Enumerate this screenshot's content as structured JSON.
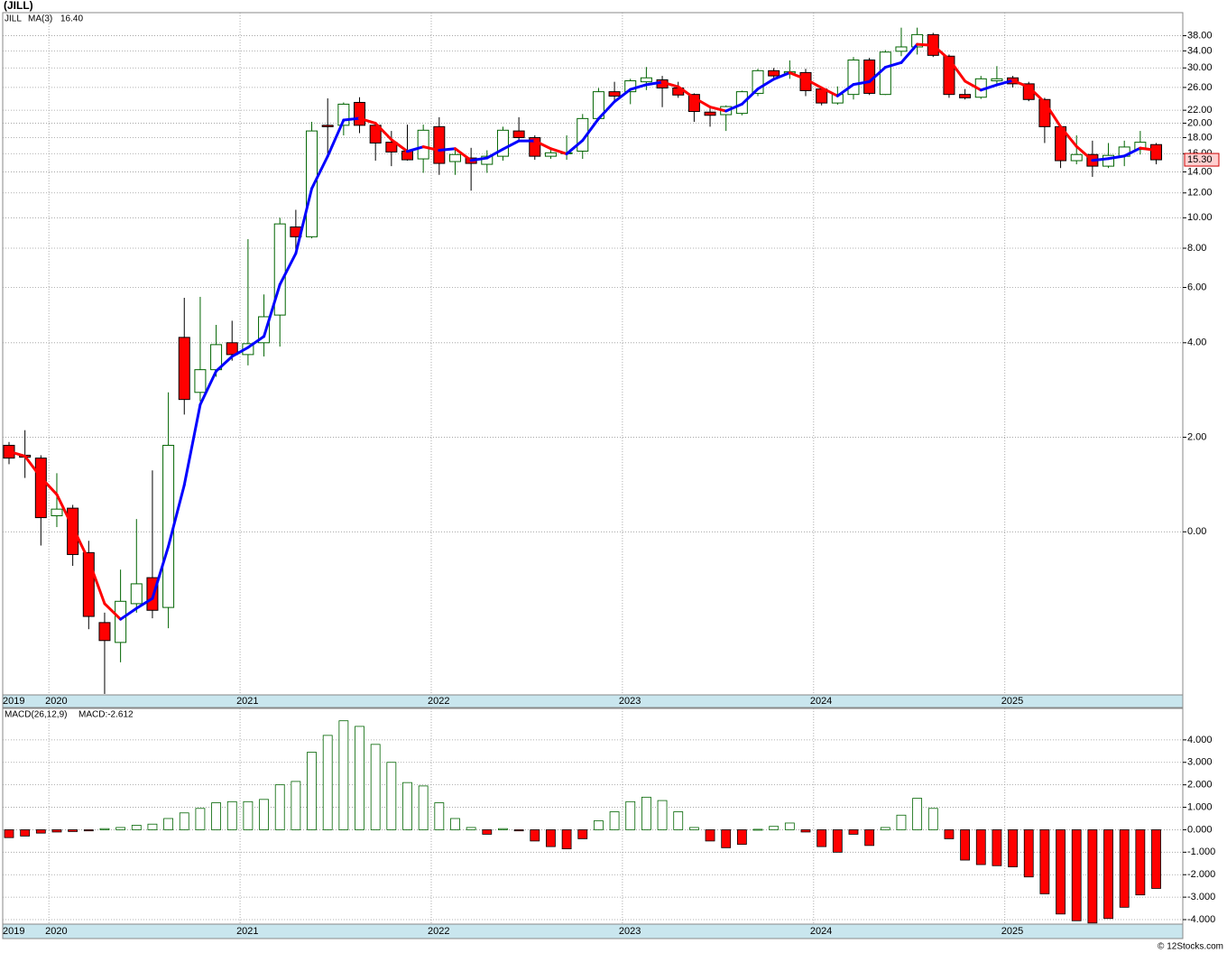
{
  "chart_data": [
    {
      "type": "candlestick",
      "title": "(JILL)",
      "symbol": "JILL",
      "categories": [
        "2019",
        null,
        null,
        "2020",
        null,
        null,
        null,
        null,
        null,
        null,
        null,
        null,
        null,
        null,
        null,
        "2021",
        null,
        null,
        null,
        null,
        null,
        null,
        null,
        null,
        null,
        null,
        null,
        "2022",
        null,
        null,
        null,
        null,
        null,
        null,
        null,
        null,
        null,
        null,
        null,
        "2023",
        null,
        null,
        null,
        null,
        null,
        null,
        null,
        null,
        null,
        null,
        null,
        "2024",
        null,
        null,
        null,
        null,
        null,
        null,
        null,
        null,
        null,
        null,
        null,
        "2025",
        null,
        null,
        null,
        null,
        null,
        null,
        null,
        null,
        null
      ],
      "open": [
        1.83,
        1.62,
        1.56,
        0.34,
        0.5,
        -0.44,
        -1.92,
        -2.34,
        -1.52,
        -0.97,
        -1.6,
        4.16,
        2.95,
        3.43,
        4.0,
        3.75,
        4.0,
        4.9,
        9.35,
        8.7,
        19.7,
        19.7,
        23.3,
        19.7,
        17.4,
        16.3,
        15.4,
        19.5,
        15.1,
        15.5,
        14.8,
        15.7,
        18.9,
        18.0,
        15.7,
        16.0,
        16.3,
        20.7,
        25.2,
        25.2,
        27.1,
        27.5,
        25.9,
        24.7,
        21.7,
        21.3,
        21.5,
        24.9,
        29.4,
        28.9,
        29.0,
        25.7,
        23.2,
        24.7,
        31.8,
        24.7,
        33.9,
        35.0,
        38.3,
        32.7,
        24.7,
        24.2,
        27.3,
        27.9,
        26.7,
        23.8,
        19.5,
        15.2,
        15.9,
        14.6,
        15.7,
        16.5,
        17.1
      ],
      "high": [
        1.9,
        2.15,
        1.62,
        1.24,
        0.57,
        -0.19,
        -1.71,
        -0.8,
        0.27,
        1.3,
        2.95,
        5.56,
        5.6,
        4.56,
        4.7,
        8.55,
        5.7,
        10.0,
        10.6,
        20.2,
        24.0,
        23.3,
        24.2,
        19.8,
        18.9,
        19.8,
        19.8,
        20.9,
        16.7,
        16.7,
        16.4,
        19.5,
        20.9,
        18.3,
        16.6,
        18.3,
        21.4,
        25.9,
        27.1,
        27.7,
        30.2,
        28.3,
        27.1,
        24.9,
        22.3,
        22.8,
        25.4,
        29.8,
        30.0,
        31.7,
        29.8,
        26.0,
        26.2,
        32.5,
        32.3,
        34.2,
        40.3,
        40.3,
        38.8,
        33.1,
        25.7,
        28.3,
        30.4,
        28.3,
        27.1,
        24.1,
        19.8,
        18.3,
        17.6,
        17.3,
        17.6,
        18.9,
        17.3
      ],
      "low": [
        1.43,
        1.14,
        -0.29,
        0.1,
        -0.72,
        -2.06,
        -3.43,
        -2.76,
        -1.71,
        -1.83,
        -2.04,
        2.48,
        2.76,
        3.28,
        3.62,
        3.52,
        3.71,
        3.92,
        7.9,
        8.6,
        15.9,
        18.3,
        18.6,
        15.2,
        14.6,
        15.2,
        13.9,
        13.7,
        13.7,
        12.2,
        13.9,
        15.2,
        17.7,
        15.3,
        15.4,
        15.3,
        15.4,
        20.4,
        23.5,
        23.0,
        25.5,
        22.5,
        24.1,
        20.2,
        19.5,
        18.9,
        21.2,
        24.4,
        27.7,
        27.7,
        24.4,
        22.8,
        22.9,
        23.8,
        24.6,
        24.6,
        32.7,
        33.1,
        32.5,
        24.1,
        23.8,
        23.9,
        26.7,
        26.0,
        23.5,
        17.3,
        14.4,
        14.8,
        13.5,
        14.4,
        14.6,
        15.9,
        14.8
      ],
      "close": [
        1.56,
        1.58,
        0.3,
        0.48,
        -0.48,
        -1.79,
        -2.3,
        -1.47,
        -1.1,
        -1.66,
        1.83,
        2.8,
        3.43,
        3.96,
        3.75,
        3.98,
        4.84,
        9.56,
        8.7,
        18.9,
        19.5,
        23.0,
        19.7,
        17.3,
        16.2,
        15.3,
        19.0,
        14.9,
        15.9,
        14.9,
        15.7,
        19.0,
        18.0,
        15.7,
        16.1,
        16.1,
        20.7,
        25.2,
        24.4,
        27.3,
        27.9,
        25.9,
        24.6,
        21.8,
        21.2,
        22.6,
        25.2,
        29.4,
        28.3,
        29.2,
        25.4,
        23.2,
        24.7,
        31.8,
        24.9,
        33.7,
        35.0,
        38.3,
        32.9,
        24.7,
        24.1,
        27.7,
        27.7,
        26.7,
        23.8,
        19.5,
        15.2,
        15.9,
        14.6,
        15.8,
        16.8,
        17.4,
        15.3
      ],
      "last_close_label": "15.30",
      "up_color": "#006400",
      "down_color": "#ff0000",
      "ma": {
        "name": "MA(3)",
        "label": "16.40",
        "up_color": "#0000ff",
        "down_color": "#ff0000",
        "values": [
          1.7,
          1.6,
          1.15,
          0.79,
          0.1,
          -0.6,
          -1.52,
          -1.85,
          -1.62,
          -1.41,
          -0.31,
          0.99,
          2.69,
          3.4,
          3.71,
          3.9,
          4.19,
          6.13,
          7.7,
          12.39,
          15.7,
          20.47,
          20.73,
          20.0,
          17.73,
          16.27,
          16.83,
          16.4,
          16.6,
          15.23,
          15.5,
          16.53,
          17.57,
          17.57,
          16.6,
          15.97,
          17.63,
          20.67,
          23.43,
          25.63,
          26.53,
          27.03,
          26.13,
          24.1,
          22.53,
          21.87,
          23.0,
          25.73,
          27.63,
          28.97,
          27.63,
          25.93,
          24.43,
          26.57,
          27.13,
          30.13,
          31.2,
          35.67,
          35.4,
          31.97,
          27.23,
          25.5,
          26.5,
          27.37,
          26.07,
          23.33,
          19.5,
          16.87,
          15.23,
          15.43,
          15.73,
          16.67,
          16.4
        ]
      },
      "ylim": [
        -3.45,
        45
      ],
      "yticks": [
        {
          "value": 0,
          "label": "0.00"
        },
        {
          "value": 2,
          "label": "2.00"
        },
        {
          "value": 4,
          "label": "4.00"
        },
        {
          "value": 6,
          "label": "6.00"
        },
        {
          "value": 8,
          "label": "8.00"
        },
        {
          "value": 10,
          "label": "10.00"
        },
        {
          "value": 12,
          "label": "12.00"
        },
        {
          "value": 14,
          "label": "14.00"
        },
        {
          "value": 16,
          "label": "16.00"
        },
        {
          "value": 18,
          "label": "18.00"
        },
        {
          "value": 20,
          "label": "20.00"
        },
        {
          "value": 22,
          "label": "22.00"
        },
        {
          "value": 26,
          "label": "26.00"
        },
        {
          "value": 30,
          "label": "30.00"
        },
        {
          "value": 34,
          "label": "34.00"
        },
        {
          "value": 38,
          "label": "38.00"
        }
      ],
      "grid": true
    },
    {
      "type": "bar",
      "title": "MACD(26,12,9)",
      "value_label": "MACD:-2.612",
      "categories": [
        "2019",
        null,
        null,
        "2020",
        null,
        null,
        null,
        null,
        null,
        null,
        null,
        null,
        null,
        null,
        null,
        "2021",
        null,
        null,
        null,
        null,
        null,
        null,
        null,
        null,
        null,
        null,
        null,
        "2022",
        null,
        null,
        null,
        null,
        null,
        null,
        null,
        null,
        null,
        null,
        null,
        "2023",
        null,
        null,
        null,
        null,
        null,
        null,
        null,
        null,
        null,
        null,
        null,
        "2024",
        null,
        null,
        null,
        null,
        null,
        null,
        null,
        null,
        null,
        null,
        null,
        "2025",
        null,
        null,
        null,
        null,
        null,
        null,
        null,
        null,
        null
      ],
      "values": [
        -0.35,
        -0.28,
        -0.15,
        -0.1,
        -0.08,
        -0.05,
        0.05,
        0.1,
        0.2,
        0.25,
        0.5,
        0.75,
        0.95,
        1.2,
        1.25,
        1.25,
        1.35,
        2.0,
        2.15,
        3.45,
        4.2,
        4.85,
        4.6,
        3.8,
        3.0,
        2.1,
        1.95,
        1.2,
        0.5,
        0.1,
        -0.2,
        0.05,
        -0.05,
        -0.5,
        -0.75,
        -0.85,
        -0.4,
        0.4,
        0.8,
        1.25,
        1.45,
        1.3,
        0.8,
        0.1,
        -0.5,
        -0.8,
        -0.65,
        0.02,
        0.15,
        0.3,
        -0.1,
        -0.75,
        -1.0,
        -0.2,
        -0.7,
        0.1,
        0.65,
        1.4,
        0.95,
        -0.4,
        -1.35,
        -1.55,
        -1.6,
        -1.65,
        -2.1,
        -2.85,
        -3.75,
        -4.05,
        -4.15,
        -3.95,
        -3.45,
        -2.9,
        -2.612
      ],
      "up_color": "#006400",
      "down_color": "#ff0000",
      "ylim": [
        -4.2,
        5.4
      ],
      "yticks": [
        {
          "value": 4,
          "label": "4.000"
        },
        {
          "value": 3,
          "label": "3.000"
        },
        {
          "value": 2,
          "label": "2.000"
        },
        {
          "value": 1,
          "label": "1.000"
        },
        {
          "value": 0,
          "label": "0.000"
        },
        {
          "value": -1,
          "label": "-1.000"
        },
        {
          "value": -2,
          "label": "-2.000"
        },
        {
          "value": -3,
          "label": "-3.000"
        },
        {
          "value": -4,
          "label": "-4.000"
        }
      ],
      "grid": true
    }
  ],
  "footer": "© 12Stocks.com"
}
